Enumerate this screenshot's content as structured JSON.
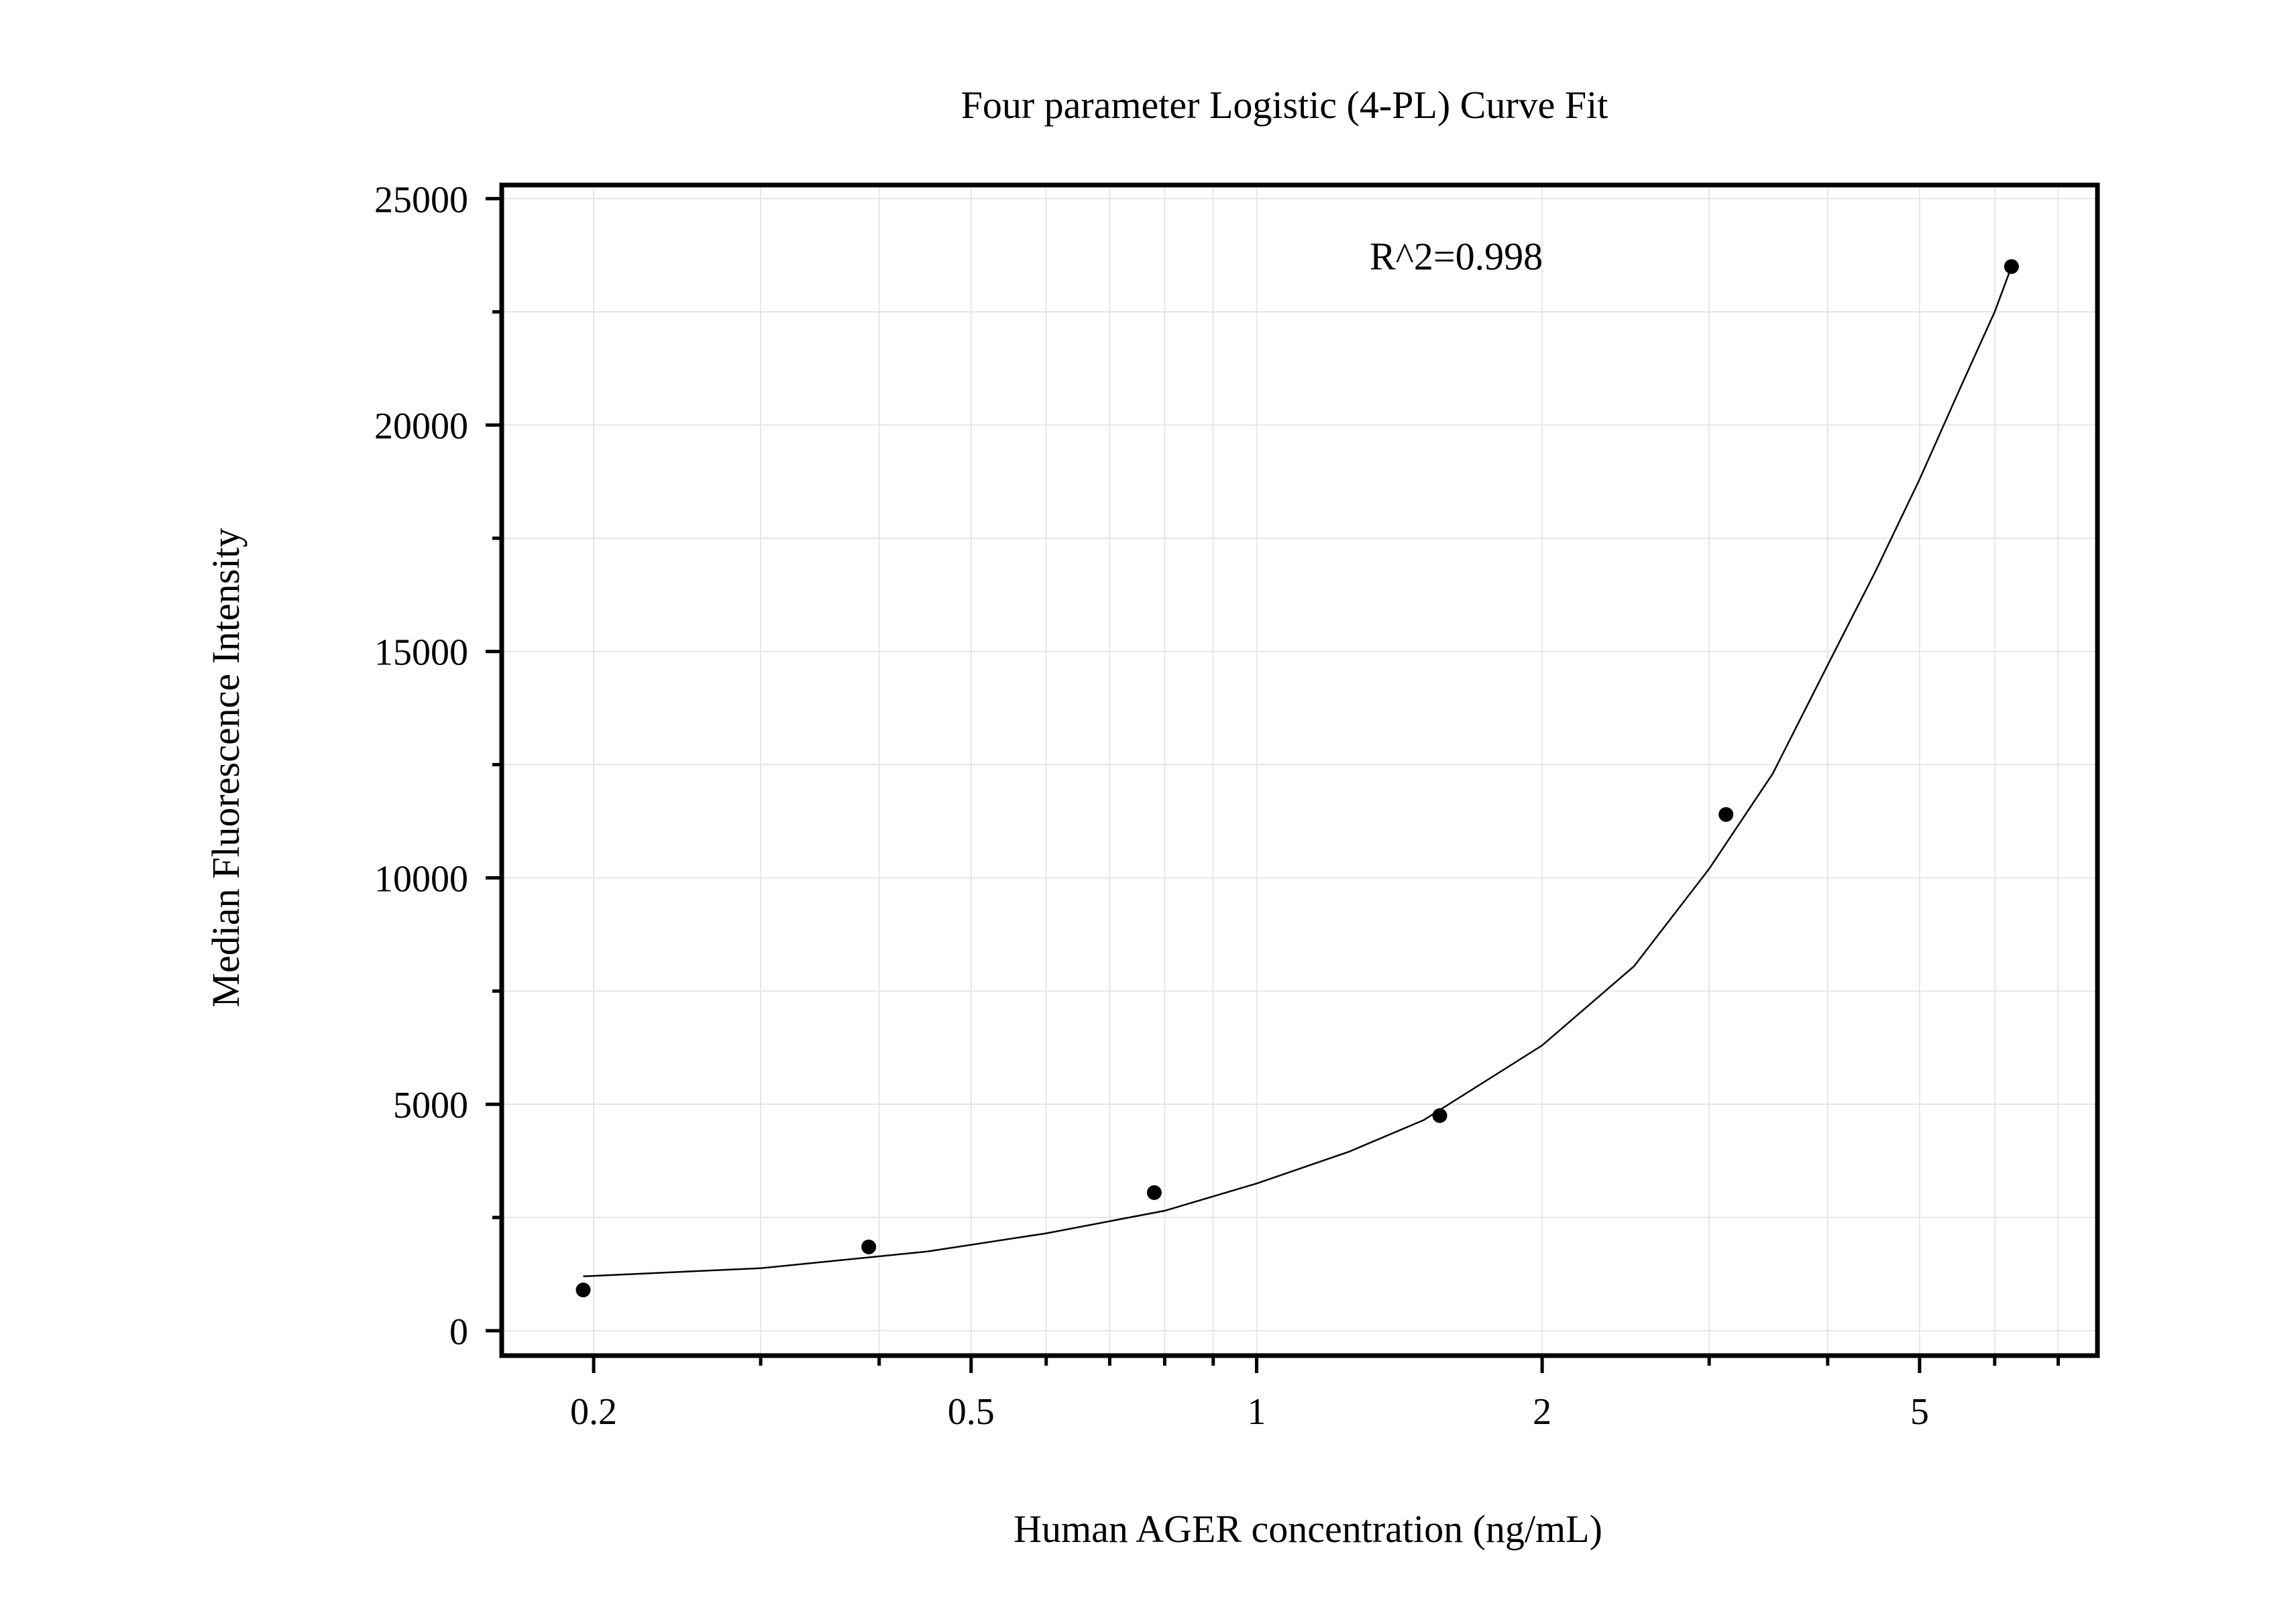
{
  "chart_data": {
    "type": "scatter",
    "title": "Four parameter Logistic (4-PL) Curve Fit",
    "xlabel": "Human AGER concentration (ng/mL)",
    "ylabel": "Median Fluorescence Intensity",
    "annotation": "R^2=0.998",
    "x_scale": "log",
    "xlim": [
      0.16,
      7.7
    ],
    "ylim": [
      -550,
      25300
    ],
    "x_ticks": [
      0.2,
      0.5,
      1,
      2,
      5
    ],
    "x_tick_labels": [
      "0.2",
      "0.5",
      "1",
      "2",
      "5"
    ],
    "y_ticks": [
      0,
      5000,
      10000,
      15000,
      20000,
      25000
    ],
    "y_tick_labels": [
      "0",
      "5000",
      "10000",
      "15000",
      "20000",
      "25000"
    ],
    "grid": true,
    "series": [
      {
        "type": "scatter",
        "x": [
          0.195,
          0.39,
          0.78,
          1.56,
          3.125,
          6.25
        ],
        "y": [
          900,
          1850,
          3050,
          4750,
          11400,
          23500
        ]
      },
      {
        "type": "line",
        "x": [
          0.195,
          0.3,
          0.45,
          0.6,
          0.8,
          1.0,
          1.25,
          1.5,
          2.0,
          2.5,
          3.0,
          3.5,
          4.0,
          4.5,
          5.0,
          5.5,
          6.0,
          6.25
        ],
        "y": [
          1200,
          1380,
          1750,
          2150,
          2650,
          3250,
          3950,
          4650,
          6300,
          8050,
          10200,
          12300,
          14700,
          16800,
          18800,
          20750,
          22500,
          23500
        ]
      }
    ],
    "colors": {
      "axis": "#000000",
      "grid": "#e6e6e6",
      "points": "#000000",
      "curve": "#000000"
    }
  }
}
